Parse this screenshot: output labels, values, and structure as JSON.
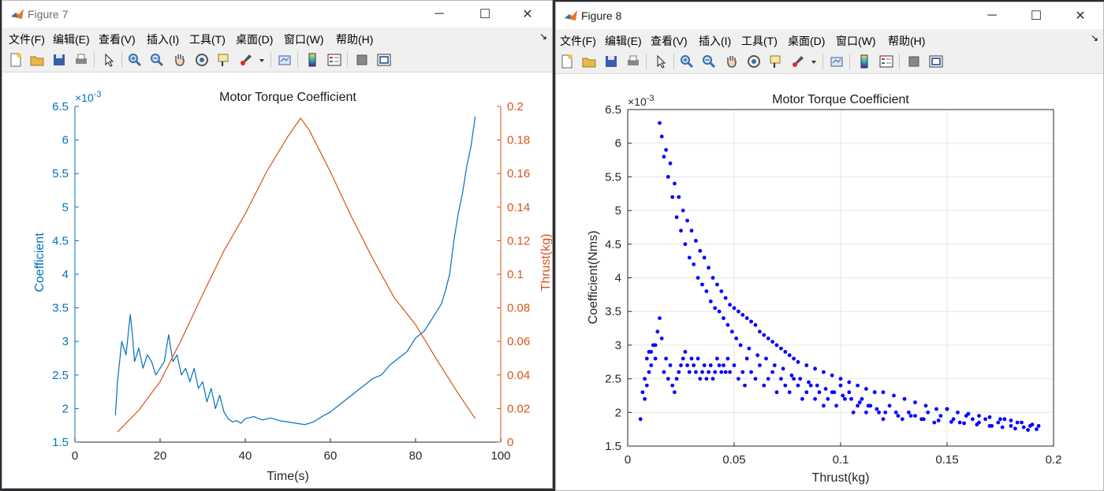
{
  "menu_items": [
    "文件(F)",
    "编辑(E)",
    "查看(V)",
    "插入(I)",
    "工具(T)",
    "桌面(D)",
    "窗口(W)",
    "帮助(H)"
  ],
  "window_controls": {
    "minimize": "─",
    "maximize": "☐",
    "close": "✕"
  },
  "toolbar_icons": [
    "new-figure-icon",
    "open-file-icon",
    "save-icon",
    "print-icon",
    "edit-plot-arrow-icon",
    "zoom-in-icon",
    "zoom-out-icon",
    "pan-hand-icon",
    "rotate-3d-icon",
    "data-cursor-icon",
    "brush-icon",
    "brush-dropdown-icon",
    "link-plot-icon",
    "colorbar-icon",
    "legend-icon",
    "hide-plot-tools-icon",
    "show-plot-tools-icon"
  ],
  "colors": {
    "blue_series": "#0072BD",
    "orange_series": "#D95319",
    "scatter": "#0000FF",
    "axis": "#262626"
  },
  "figure7": {
    "window_title": "Figure 7",
    "chart_data": {
      "type": "line",
      "title": "Motor Torque Coefficient",
      "xlabel": "Time(s)",
      "xlim": [
        0,
        100
      ],
      "x_ticks": [
        "0",
        "20",
        "40",
        "60",
        "80",
        "100"
      ],
      "left_axis": {
        "ylabel": "Coefficient",
        "ylim": [
          1.5,
          6.5
        ],
        "exponent": "×10",
        "exponent_power": "-3",
        "ticks": [
          "1.5",
          "2",
          "2.5",
          "3",
          "3.5",
          "4",
          "4.5",
          "5",
          "5.5",
          "6",
          "6.5"
        ]
      },
      "right_axis": {
        "ylabel": "Thrust(kg)",
        "ylim": [
          0,
          0.2
        ],
        "ticks": [
          "0",
          "0.02",
          "0.04",
          "0.06",
          "0.08",
          "0.1",
          "0.12",
          "0.14",
          "0.16",
          "0.18",
          "0.2"
        ]
      },
      "series": [
        {
          "axis": "left",
          "color": "#0072BD",
          "x": [
            9.5,
            10,
            11,
            12,
            13,
            13.5,
            14,
            15,
            16,
            17,
            18,
            19,
            20,
            21,
            22,
            23,
            24,
            25,
            26,
            27,
            28,
            29,
            30,
            31,
            32,
            33,
            34,
            35,
            36,
            37,
            38,
            39,
            40,
            42,
            44,
            46,
            48,
            50,
            52,
            54,
            56,
            58,
            60,
            62,
            64,
            66,
            68,
            70,
            72,
            74,
            76,
            78,
            80,
            82,
            84,
            86,
            87,
            88,
            89,
            90,
            91,
            92,
            93,
            94
          ],
          "y": [
            1.9,
            2.4,
            3.0,
            2.8,
            3.4,
            3.1,
            2.7,
            2.9,
            2.6,
            2.8,
            2.7,
            2.5,
            2.6,
            2.7,
            3.1,
            2.7,
            2.8,
            2.5,
            2.6,
            2.4,
            2.6,
            2.3,
            2.4,
            2.1,
            2.3,
            2.0,
            2.2,
            1.95,
            1.85,
            1.8,
            1.82,
            1.78,
            1.85,
            1.88,
            1.83,
            1.86,
            1.82,
            1.8,
            1.78,
            1.76,
            1.8,
            1.88,
            1.95,
            2.05,
            2.15,
            2.25,
            2.35,
            2.45,
            2.5,
            2.65,
            2.75,
            2.85,
            3.05,
            3.15,
            3.35,
            3.55,
            3.75,
            4.0,
            4.5,
            4.9,
            5.2,
            5.6,
            5.9,
            6.35
          ]
        },
        {
          "axis": "right",
          "color": "#D95319",
          "x": [
            10,
            15,
            20,
            25,
            30,
            35,
            40,
            45,
            50,
            53,
            55,
            58,
            60,
            65,
            70,
            75,
            80,
            85,
            90,
            94
          ],
          "y": [
            0.006,
            0.019,
            0.036,
            0.061,
            0.088,
            0.114,
            0.136,
            0.161,
            0.182,
            0.193,
            0.186,
            0.171,
            0.161,
            0.134,
            0.109,
            0.086,
            0.07,
            0.049,
            0.029,
            0.014
          ]
        }
      ]
    }
  },
  "figure8": {
    "window_title": "Figure 8",
    "chart_data": {
      "type": "scatter",
      "title": "Motor Torque Coefficient",
      "xlabel": "Thrust(kg)",
      "ylabel": "Coefficient(Nms)",
      "xlim": [
        0,
        0.2
      ],
      "ylim": [
        1.5,
        6.5
      ],
      "exponent": "×10",
      "exponent_power": "-3",
      "grid": true,
      "x_ticks": [
        "0",
        "0.05",
        "0.1",
        "0.15",
        "0.2"
      ],
      "y_ticks": [
        "1.5",
        "2",
        "2.5",
        "3",
        "3.5",
        "4",
        "4.5",
        "5",
        "5.5",
        "6",
        "6.5"
      ],
      "color": "#0000FF",
      "x": [
        0.006,
        0.007,
        0.008,
        0.009,
        0.01,
        0.011,
        0.012,
        0.013,
        0.014,
        0.015,
        0.016,
        0.017,
        0.018,
        0.019,
        0.02,
        0.021,
        0.022,
        0.023,
        0.024,
        0.025,
        0.026,
        0.027,
        0.028,
        0.029,
        0.03,
        0.031,
        0.032,
        0.033,
        0.034,
        0.035,
        0.036,
        0.037,
        0.038,
        0.039,
        0.04,
        0.041,
        0.042,
        0.043,
        0.044,
        0.045,
        0.046,
        0.047,
        0.048,
        0.05,
        0.052,
        0.054,
        0.055,
        0.056,
        0.058,
        0.06,
        0.062,
        0.064,
        0.066,
        0.068,
        0.07,
        0.072,
        0.074,
        0.076,
        0.078,
        0.08,
        0.082,
        0.084,
        0.086,
        0.088,
        0.09,
        0.092,
        0.094,
        0.096,
        0.098,
        0.1,
        0.102,
        0.104,
        0.106,
        0.108,
        0.11,
        0.112,
        0.114,
        0.116,
        0.118,
        0.12,
        0.123,
        0.126,
        0.129,
        0.132,
        0.135,
        0.138,
        0.141,
        0.144,
        0.147,
        0.15,
        0.153,
        0.156,
        0.159,
        0.162,
        0.165,
        0.168,
        0.171,
        0.174,
        0.177,
        0.18,
        0.183,
        0.186,
        0.189,
        0.192,
        0.193,
        0.015,
        0.016,
        0.018,
        0.02,
        0.022,
        0.024,
        0.026,
        0.028,
        0.03,
        0.032,
        0.034,
        0.036,
        0.038,
        0.04,
        0.042,
        0.044,
        0.046,
        0.048,
        0.05,
        0.052,
        0.054,
        0.056,
        0.058,
        0.06,
        0.062,
        0.064,
        0.066,
        0.068,
        0.07,
        0.072,
        0.074,
        0.076,
        0.078,
        0.08,
        0.084,
        0.088,
        0.092,
        0.096,
        0.1,
        0.104,
        0.108,
        0.112,
        0.116,
        0.12,
        0.125,
        0.13,
        0.135,
        0.14,
        0.145,
        0.15,
        0.155,
        0.16,
        0.165,
        0.17,
        0.175,
        0.18,
        0.185,
        0.19,
        0.017,
        0.019,
        0.021,
        0.023,
        0.025,
        0.027,
        0.029,
        0.031,
        0.033,
        0.035,
        0.037,
        0.039,
        0.041,
        0.043,
        0.045,
        0.047,
        0.049,
        0.051,
        0.053,
        0.057,
        0.061,
        0.065,
        0.069,
        0.073,
        0.077,
        0.081,
        0.085,
        0.089,
        0.093,
        0.097,
        0.101,
        0.105,
        0.109,
        0.113,
        0.117,
        0.121,
        0.127,
        0.133,
        0.139,
        0.146,
        0.152,
        0.158,
        0.164,
        0.17,
        0.176,
        0.182,
        0.188,
        0.008,
        0.009,
        0.01,
        0.011,
        0.013
      ],
      "y": [
        1.9,
        2.3,
        2.5,
        2.8,
        2.9,
        2.7,
        3.0,
        2.8,
        3.2,
        3.4,
        3.1,
        2.6,
        2.8,
        2.5,
        2.7,
        2.4,
        2.3,
        2.5,
        2.6,
        2.7,
        2.8,
        2.9,
        2.7,
        2.6,
        2.8,
        2.7,
        2.6,
        2.8,
        2.5,
        2.6,
        2.7,
        2.5,
        2.6,
        2.7,
        2.5,
        2.6,
        2.8,
        2.7,
        2.6,
        2.7,
        2.6,
        2.8,
        2.6,
        2.7,
        2.5,
        2.6,
        2.4,
        2.8,
        2.6,
        2.5,
        2.7,
        2.4,
        2.5,
        2.6,
        2.3,
        2.5,
        2.4,
        2.3,
        2.5,
        2.4,
        2.2,
        2.3,
        2.4,
        2.2,
        2.3,
        2.1,
        2.2,
        2.3,
        2.1,
        2.4,
        2.2,
        2.3,
        2.0,
        2.1,
        2.2,
        2.0,
        2.1,
        2.3,
        2.0,
        1.9,
        2.1,
        2.0,
        1.9,
        2.0,
        1.95,
        1.9,
        2.0,
        1.85,
        1.95,
        2.05,
        1.9,
        1.85,
        1.95,
        1.9,
        1.85,
        1.9,
        1.8,
        1.85,
        1.9,
        1.8,
        1.85,
        1.78,
        1.8,
        1.75,
        1.8,
        6.3,
        6.1,
        5.9,
        5.7,
        5.4,
        5.2,
        5.0,
        4.85,
        4.7,
        4.55,
        4.4,
        4.3,
        4.15,
        4.0,
        3.9,
        3.8,
        3.7,
        3.6,
        3.55,
        3.5,
        3.45,
        3.4,
        3.35,
        3.3,
        3.2,
        3.15,
        3.1,
        3.05,
        3.0,
        2.95,
        2.9,
        2.85,
        2.8,
        2.75,
        2.7,
        2.65,
        2.6,
        2.55,
        2.5,
        2.45,
        2.4,
        2.35,
        2.3,
        2.3,
        2.25,
        2.2,
        2.15,
        2.1,
        2.05,
        2.05,
        2.0,
        1.98,
        1.95,
        1.93,
        1.9,
        1.88,
        1.85,
        1.82,
        5.8,
        5.5,
        5.2,
        4.9,
        4.7,
        4.5,
        4.3,
        4.2,
        4.0,
        3.9,
        3.8,
        3.65,
        3.55,
        3.5,
        3.4,
        3.3,
        3.2,
        3.1,
        3.0,
        2.95,
        2.85,
        2.8,
        2.7,
        2.65,
        2.55,
        2.5,
        2.45,
        2.4,
        2.35,
        2.3,
        2.25,
        2.2,
        2.15,
        2.1,
        2.05,
        2.0,
        1.95,
        1.95,
        1.9,
        1.88,
        1.86,
        1.84,
        1.82,
        1.8,
        1.78,
        1.76,
        1.74,
        2.2,
        2.4,
        2.6,
        2.9,
        3.0
      ]
    }
  }
}
